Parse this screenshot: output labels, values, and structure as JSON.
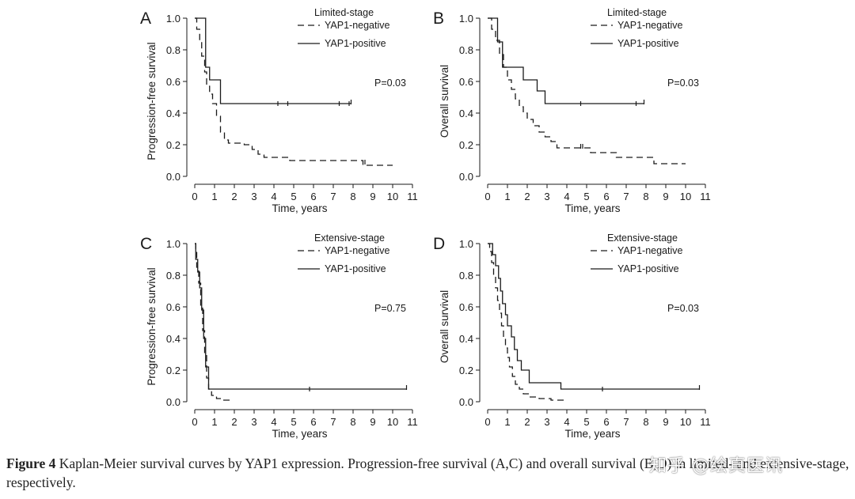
{
  "chart_data": [
    {
      "type": "line",
      "panel": "A",
      "legend_title": "Limited-stage",
      "ylabel": "Progression-free survival",
      "xlabel": "Time, years",
      "p_value": "P=0.03",
      "xlim": [
        0,
        11
      ],
      "ylim": [
        0,
        1
      ],
      "xticks": [
        "0",
        "1",
        "2",
        "3",
        "4",
        "5",
        "6",
        "7",
        "8",
        "9",
        "10",
        "11"
      ],
      "yticks": [
        "0.0",
        "0.2",
        "0.4",
        "0.6",
        "0.8",
        "1.0"
      ],
      "series": [
        {
          "name": "YAP1-negative",
          "style": "dashed",
          "steps": [
            [
              0,
              1.0
            ],
            [
              0.1,
              0.93
            ],
            [
              0.25,
              0.86
            ],
            [
              0.35,
              0.76
            ],
            [
              0.5,
              0.66
            ],
            [
              0.6,
              0.57
            ],
            [
              0.75,
              0.52
            ],
            [
              0.9,
              0.46
            ],
            [
              1.1,
              0.38
            ],
            [
              1.3,
              0.28
            ],
            [
              1.5,
              0.23
            ],
            [
              1.7,
              0.21
            ],
            [
              2.5,
              0.2
            ],
            [
              2.9,
              0.17
            ],
            [
              3.2,
              0.14
            ],
            [
              3.5,
              0.12
            ],
            [
              4.8,
              0.1
            ],
            [
              8.5,
              0.07
            ],
            [
              10.0,
              0.07
            ]
          ],
          "censors": [
            [
              8.6,
              0.09
            ]
          ]
        },
        {
          "name": "YAP1-positive",
          "style": "solid",
          "steps": [
            [
              0,
              1.0
            ],
            [
              0.55,
              0.69
            ],
            [
              0.75,
              0.61
            ],
            [
              1.3,
              0.46
            ],
            [
              7.9,
              0.46
            ]
          ],
          "censors": [
            [
              4.2,
              0.46
            ],
            [
              4.7,
              0.46
            ],
            [
              7.3,
              0.46
            ],
            [
              7.8,
              0.46
            ],
            [
              7.9,
              0.47
            ]
          ]
        }
      ]
    },
    {
      "type": "line",
      "panel": "B",
      "legend_title": "Limited-stage",
      "ylabel": "Overall survival",
      "xlabel": "Time, years",
      "p_value": "P=0.03",
      "xlim": [
        0,
        11
      ],
      "ylim": [
        0,
        1
      ],
      "xticks": [
        "0",
        "1",
        "2",
        "3",
        "4",
        "5",
        "6",
        "7",
        "8",
        "9",
        "10",
        "11"
      ],
      "yticks": [
        "0.0",
        "0.2",
        "0.4",
        "0.6",
        "0.8",
        "1.0"
      ],
      "series": [
        {
          "name": "YAP1-negative",
          "style": "dashed",
          "steps": [
            [
              0,
              1.0
            ],
            [
              0.2,
              0.93
            ],
            [
              0.4,
              0.86
            ],
            [
              0.6,
              0.77
            ],
            [
              0.8,
              0.69
            ],
            [
              1.0,
              0.61
            ],
            [
              1.2,
              0.55
            ],
            [
              1.4,
              0.49
            ],
            [
              1.6,
              0.44
            ],
            [
              1.8,
              0.4
            ],
            [
              2.0,
              0.36
            ],
            [
              2.3,
              0.32
            ],
            [
              2.6,
              0.28
            ],
            [
              2.9,
              0.25
            ],
            [
              3.2,
              0.22
            ],
            [
              3.5,
              0.18
            ],
            [
              4.6,
              0.18
            ],
            [
              5.2,
              0.15
            ],
            [
              6.5,
              0.12
            ],
            [
              8.4,
              0.08
            ],
            [
              10.0,
              0.08
            ]
          ],
          "censors": [
            [
              4.7,
              0.19
            ],
            [
              4.8,
              0.19
            ]
          ]
        },
        {
          "name": "YAP1-positive",
          "style": "solid",
          "steps": [
            [
              0,
              1.0
            ],
            [
              0.5,
              0.85
            ],
            [
              0.75,
              0.69
            ],
            [
              1.8,
              0.61
            ],
            [
              2.5,
              0.54
            ],
            [
              2.9,
              0.46
            ],
            [
              7.9,
              0.46
            ]
          ],
          "censors": [
            [
              4.7,
              0.46
            ],
            [
              7.5,
              0.46
            ],
            [
              7.9,
              0.47
            ]
          ]
        }
      ]
    },
    {
      "type": "line",
      "panel": "C",
      "legend_title": "Extensive-stage",
      "ylabel": "Progression-free survival",
      "xlabel": "Time, years",
      "p_value": "P=0.75",
      "xlim": [
        0,
        11
      ],
      "ylim": [
        0,
        1
      ],
      "xticks": [
        "0",
        "1",
        "2",
        "3",
        "4",
        "5",
        "6",
        "7",
        "8",
        "9",
        "10",
        "11"
      ],
      "yticks": [
        "0.0",
        "0.2",
        "0.4",
        "0.6",
        "0.8",
        "1.0"
      ],
      "series": [
        {
          "name": "YAP1-negative",
          "style": "dashed",
          "steps": [
            [
              0,
              1.0
            ],
            [
              0.05,
              0.95
            ],
            [
              0.1,
              0.85
            ],
            [
              0.2,
              0.75
            ],
            [
              0.3,
              0.6
            ],
            [
              0.4,
              0.45
            ],
            [
              0.5,
              0.3
            ],
            [
              0.6,
              0.15
            ],
            [
              0.7,
              0.08
            ],
            [
              0.85,
              0.04
            ],
            [
              1.1,
              0.02
            ],
            [
              1.4,
              0.01
            ],
            [
              1.8,
              0.01
            ]
          ],
          "censors": []
        },
        {
          "name": "YAP1-positive",
          "style": "solid",
          "steps": [
            [
              0,
              1.0
            ],
            [
              0.05,
              0.9
            ],
            [
              0.15,
              0.82
            ],
            [
              0.25,
              0.72
            ],
            [
              0.35,
              0.58
            ],
            [
              0.45,
              0.4
            ],
            [
              0.55,
              0.22
            ],
            [
              0.7,
              0.08
            ],
            [
              10.7,
              0.08
            ]
          ],
          "censors": [
            [
              5.8,
              0.08
            ],
            [
              10.7,
              0.09
            ]
          ]
        }
      ]
    },
    {
      "type": "line",
      "panel": "D",
      "legend_title": "Extensive-stage",
      "ylabel": "Overall survival",
      "xlabel": "Time, years",
      "p_value": "P=0.03",
      "xlim": [
        0,
        11
      ],
      "ylim": [
        0,
        1
      ],
      "xticks": [
        "0",
        "1",
        "2",
        "3",
        "4",
        "5",
        "6",
        "7",
        "8",
        "9",
        "10",
        "11"
      ],
      "yticks": [
        "0.0",
        "0.2",
        "0.4",
        "0.6",
        "0.8",
        "1.0"
      ],
      "series": [
        {
          "name": "YAP1-negative",
          "style": "dashed",
          "steps": [
            [
              0,
              1.0
            ],
            [
              0.1,
              0.95
            ],
            [
              0.2,
              0.88
            ],
            [
              0.3,
              0.8
            ],
            [
              0.4,
              0.72
            ],
            [
              0.5,
              0.64
            ],
            [
              0.6,
              0.56
            ],
            [
              0.7,
              0.48
            ],
            [
              0.8,
              0.41
            ],
            [
              0.9,
              0.34
            ],
            [
              1.0,
              0.28
            ],
            [
              1.1,
              0.22
            ],
            [
              1.25,
              0.16
            ],
            [
              1.4,
              0.11
            ],
            [
              1.6,
              0.08
            ],
            [
              1.8,
              0.05
            ],
            [
              2.1,
              0.03
            ],
            [
              2.6,
              0.02
            ],
            [
              3.2,
              0.01
            ],
            [
              4.0,
              0.01
            ]
          ],
          "censors": []
        },
        {
          "name": "YAP1-positive",
          "style": "solid",
          "steps": [
            [
              0,
              1.0
            ],
            [
              0.25,
              0.93
            ],
            [
              0.4,
              0.86
            ],
            [
              0.55,
              0.78
            ],
            [
              0.65,
              0.7
            ],
            [
              0.75,
              0.62
            ],
            [
              0.9,
              0.55
            ],
            [
              1.0,
              0.48
            ],
            [
              1.2,
              0.41
            ],
            [
              1.35,
              0.33
            ],
            [
              1.5,
              0.26
            ],
            [
              1.7,
              0.2
            ],
            [
              2.1,
              0.12
            ],
            [
              3.7,
              0.08
            ],
            [
              10.7,
              0.08
            ]
          ],
          "censors": [
            [
              5.8,
              0.08
            ],
            [
              10.7,
              0.09
            ]
          ]
        }
      ]
    }
  ],
  "caption": {
    "label": "Figure 4",
    "text": " Kaplan-Meier survival curves by YAP1 expression. Progression-free survival (A,C) and overall survival (B,D) in limited- and extensive-stage, respectively."
  },
  "watermark": "知乎 @绘真医讯",
  "colors": {
    "ink": "#1a1a1a",
    "background": "#ffffff"
  }
}
